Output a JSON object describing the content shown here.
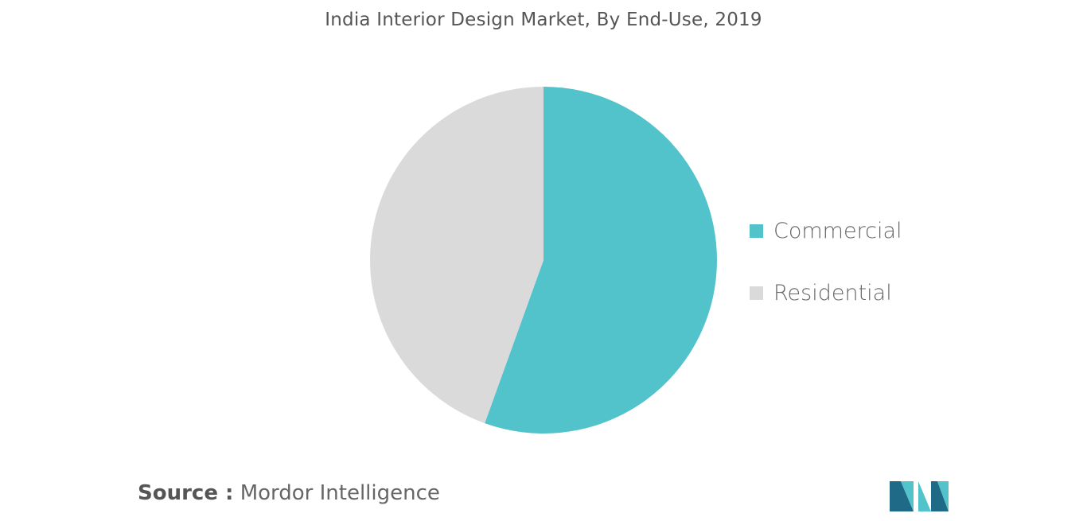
{
  "chart_data": {
    "type": "pie",
    "title": "India Interior Design Market, By End-Use, 2019",
    "slices": [
      {
        "label": "Commercial",
        "value": 55.5,
        "color": "#52c3ca"
      },
      {
        "label": "Residential",
        "value": 44.5,
        "color": "#dadada"
      }
    ],
    "legend_position": "right"
  },
  "footer": {
    "source_label": "Source :",
    "source_text": "Mordor Intelligence"
  },
  "logo": {
    "icon": "mordor-intelligence-logo-icon",
    "colors": [
      "#1f6b87",
      "#52c3ca"
    ]
  }
}
